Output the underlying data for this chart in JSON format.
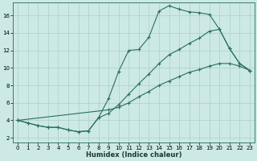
{
  "xlabel": "Humidex (Indice chaleur)",
  "xlim": [
    -0.5,
    23.5
  ],
  "ylim": [
    1.5,
    17.5
  ],
  "xticks": [
    0,
    1,
    2,
    3,
    4,
    5,
    6,
    7,
    8,
    9,
    10,
    11,
    12,
    13,
    14,
    15,
    16,
    17,
    18,
    19,
    20,
    21,
    22,
    23
  ],
  "yticks": [
    2,
    4,
    6,
    8,
    10,
    12,
    14,
    16
  ],
  "bg_color": "#cce9e5",
  "grid_color": "#aacfcb",
  "line_color": "#2a6e62",
  "line1_x": [
    0,
    1,
    2,
    3,
    4,
    5,
    6,
    7,
    8,
    9,
    10,
    11,
    12,
    13,
    14,
    15,
    16,
    17,
    18,
    19,
    20,
    21,
    22,
    23
  ],
  "line1_y": [
    4.0,
    3.7,
    3.4,
    3.2,
    3.2,
    2.9,
    2.7,
    2.8,
    4.3,
    6.5,
    9.6,
    12.0,
    12.1,
    13.5,
    16.5,
    17.1,
    16.7,
    16.4,
    16.3,
    16.1,
    14.4,
    12.2,
    10.5,
    9.7
  ],
  "line2_x": [
    0,
    1,
    2,
    3,
    4,
    5,
    6,
    7,
    8,
    9,
    10,
    11,
    12,
    13,
    14,
    15,
    16,
    17,
    18,
    19,
    20,
    21,
    22,
    23
  ],
  "line2_y": [
    4.0,
    3.7,
    3.4,
    3.2,
    3.2,
    2.9,
    2.7,
    2.8,
    4.3,
    4.8,
    5.8,
    7.0,
    8.2,
    9.3,
    10.5,
    11.5,
    12.1,
    12.8,
    13.4,
    14.2,
    14.4,
    12.2,
    10.5,
    9.7
  ],
  "line3_x": [
    0,
    9,
    10,
    11,
    12,
    13,
    14,
    15,
    16,
    17,
    18,
    19,
    20,
    21,
    22,
    23
  ],
  "line3_y": [
    4.0,
    5.2,
    5.5,
    6.0,
    6.7,
    7.3,
    8.0,
    8.5,
    9.0,
    9.5,
    9.8,
    10.2,
    10.5,
    10.5,
    10.2,
    9.7
  ]
}
